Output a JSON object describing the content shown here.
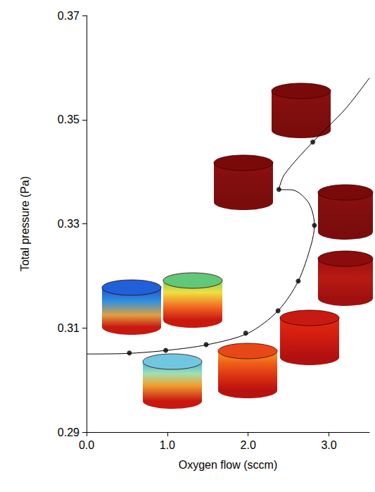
{
  "chart_data": {
    "type": "line",
    "x_label": "Oxygen flow (sccm)",
    "y_label": "Total pressure (Pa)",
    "xlim": [
      0,
      3.5
    ],
    "ylim": [
      0.29,
      0.37
    ],
    "xticks": [
      {
        "value": 0,
        "label": "0.0"
      },
      {
        "value": 1,
        "label": "1.0"
      },
      {
        "value": 2,
        "label": "2.0"
      },
      {
        "value": 3,
        "label": "3.0"
      }
    ],
    "yticks": [
      0.29,
      0.31,
      0.33,
      0.35,
      0.37
    ],
    "grid": false,
    "series": [
      {
        "type": "line",
        "color": "#000000",
        "marker": "none",
        "line_style": "solid",
        "x": [
          0,
          0.5,
          1.0,
          1.5,
          2.0,
          2.37,
          2.62,
          2.78,
          2.82,
          2.75,
          2.55,
          2.38,
          2.45,
          2.8,
          3.2,
          3.5
        ],
        "values": [
          0.305,
          0.3051,
          0.3057,
          0.3068,
          0.309,
          0.3133,
          0.319,
          0.326,
          0.3297,
          0.334,
          0.3365,
          0.3366,
          0.3395,
          0.3457,
          0.352,
          0.358
        ]
      },
      {
        "type": "scatter",
        "color": "#000000",
        "marker": "circle",
        "x": [
          0.53,
          0.98,
          1.48,
          1.97,
          2.37,
          2.62,
          2.82,
          2.38,
          2.8
        ],
        "values": [
          0.3052,
          0.3057,
          0.3068,
          0.309,
          0.3133,
          0.319,
          0.3297,
          0.3366,
          0.3457
        ]
      }
    ]
  }
}
